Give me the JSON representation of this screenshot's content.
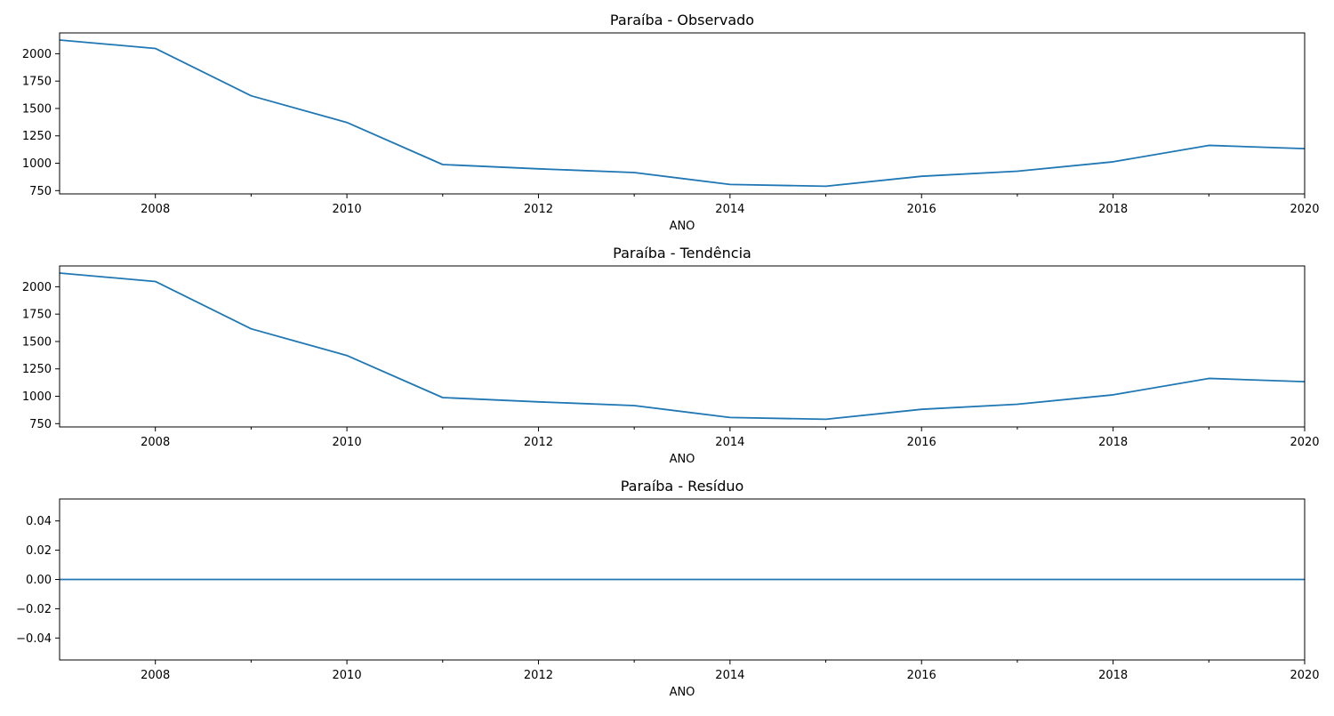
{
  "chart_data": [
    {
      "type": "line",
      "title": "Paraíba - Observado",
      "xlabel": "ANO",
      "ylabel": "",
      "x": [
        2007,
        2008,
        2009,
        2010,
        2011,
        2012,
        2013,
        2014,
        2015,
        2016,
        2017,
        2018,
        2019,
        2020
      ],
      "series": [
        {
          "values": [
            2125,
            2048,
            1616,
            1372,
            988,
            949,
            915,
            806,
            790,
            881,
            927,
            1013,
            1163,
            1133
          ]
        }
      ],
      "xlim": [
        2007,
        2020
      ],
      "ylim": [
        720,
        2190
      ],
      "xticks": [
        2008,
        2010,
        2012,
        2014,
        2016,
        2018,
        2020
      ],
      "xtick_labels": [
        "2008",
        "2010",
        "2012",
        "2014",
        "2016",
        "2018",
        "2020"
      ],
      "minor_xticks": [
        2009,
        2011,
        2013,
        2015,
        2017,
        2019
      ],
      "yticks": [
        750,
        1000,
        1250,
        1500,
        1750,
        2000
      ],
      "ytick_labels": [
        "750",
        "1000",
        "1250",
        "1500",
        "1750",
        "2000"
      ],
      "grid": false,
      "color": "#1f77b4"
    },
    {
      "type": "line",
      "title": "Paraíba - Tendência",
      "xlabel": "ANO",
      "ylabel": "",
      "x": [
        2007,
        2008,
        2009,
        2010,
        2011,
        2012,
        2013,
        2014,
        2015,
        2016,
        2017,
        2018,
        2019,
        2020
      ],
      "series": [
        {
          "values": [
            2125,
            2048,
            1616,
            1372,
            988,
            949,
            915,
            806,
            790,
            881,
            927,
            1013,
            1163,
            1133
          ]
        }
      ],
      "xlim": [
        2007,
        2020
      ],
      "ylim": [
        720,
        2190
      ],
      "xticks": [
        2008,
        2010,
        2012,
        2014,
        2016,
        2018,
        2020
      ],
      "xtick_labels": [
        "2008",
        "2010",
        "2012",
        "2014",
        "2016",
        "2018",
        "2020"
      ],
      "minor_xticks": [
        2009,
        2011,
        2013,
        2015,
        2017,
        2019
      ],
      "yticks": [
        750,
        1000,
        1250,
        1500,
        1750,
        2000
      ],
      "ytick_labels": [
        "750",
        "1000",
        "1250",
        "1500",
        "1750",
        "2000"
      ],
      "grid": false,
      "color": "#1f77b4"
    },
    {
      "type": "line",
      "title": "Paraíba - Resíduo",
      "xlabel": "ANO",
      "ylabel": "",
      "x": [
        2007,
        2008,
        2009,
        2010,
        2011,
        2012,
        2013,
        2014,
        2015,
        2016,
        2017,
        2018,
        2019,
        2020
      ],
      "series": [
        {
          "values": [
            0,
            0,
            0,
            0,
            0,
            0,
            0,
            0,
            0,
            0,
            0,
            0,
            0,
            0
          ]
        }
      ],
      "xlim": [
        2007,
        2020
      ],
      "ylim": [
        -0.055,
        0.055
      ],
      "xticks": [
        2008,
        2010,
        2012,
        2014,
        2016,
        2018,
        2020
      ],
      "xtick_labels": [
        "2008",
        "2010",
        "2012",
        "2014",
        "2016",
        "2018",
        "2020"
      ],
      "minor_xticks": [
        2009,
        2011,
        2013,
        2015,
        2017,
        2019
      ],
      "yticks": [
        -0.04,
        -0.02,
        0.0,
        0.02,
        0.04
      ],
      "ytick_labels": [
        "−0.04",
        "−0.02",
        "0.00",
        "0.02",
        "0.04"
      ],
      "grid": false,
      "color": "#1f77b4"
    }
  ]
}
